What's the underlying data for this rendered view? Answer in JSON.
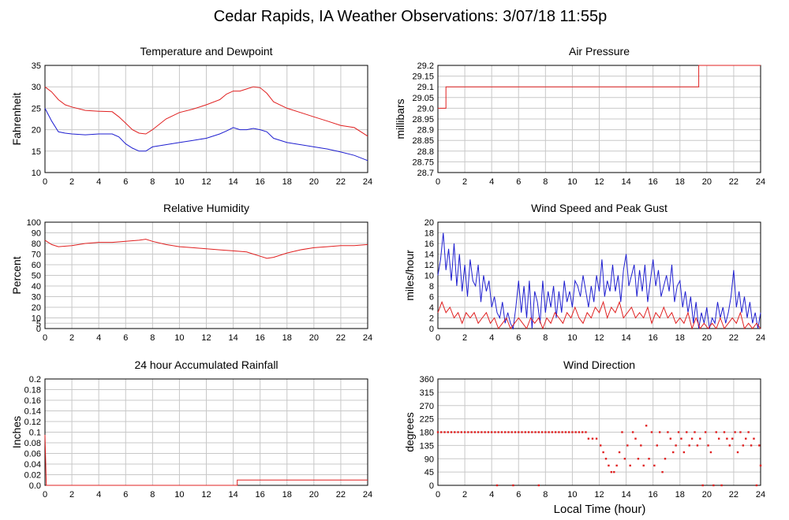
{
  "page": {
    "title": "Cedar Rapids, IA Weather Observations: 3/07/18 11:55p",
    "xlabel": "Local Time (hour)"
  },
  "colors": {
    "red": "#e02020",
    "blue": "#1f1fd0",
    "grid": "#c8c8c8",
    "axis": "#000000"
  },
  "chart_data": [
    {
      "id": "temp",
      "type": "line",
      "title": "Temperature and Dewpoint",
      "ylabel": "Fahrenheit",
      "xlim": [
        0,
        24
      ],
      "ylim": [
        10,
        35
      ],
      "yticks": [
        10,
        15,
        20,
        25,
        30,
        35
      ],
      "xticks": [
        0,
        2,
        4,
        6,
        8,
        10,
        12,
        14,
        16,
        18,
        20,
        22,
        24
      ],
      "series": [
        {
          "color": "#e02020",
          "x": [
            0,
            0.5,
            1,
            1.5,
            2,
            3,
            4,
            5,
            5.5,
            6,
            6.5,
            7,
            7.5,
            8,
            9,
            10,
            11,
            12,
            13,
            13.5,
            14,
            14.5,
            15,
            15.5,
            16,
            16.5,
            17,
            18,
            19,
            20,
            21,
            22,
            23,
            24
          ],
          "y": [
            30,
            28.8,
            27,
            25.8,
            25.3,
            24.5,
            24.3,
            24.2,
            23,
            21.5,
            20,
            19.2,
            19,
            20,
            22.5,
            24,
            24.8,
            25.8,
            27,
            28.3,
            29,
            29,
            29.5,
            30,
            29.8,
            28.5,
            26.5,
            25,
            24,
            23,
            22,
            21,
            20.5,
            18.5
          ]
        },
        {
          "color": "#1f1fd0",
          "x": [
            0,
            0.5,
            1,
            1.5,
            2,
            3,
            4,
            5,
            5.5,
            6,
            6.5,
            7,
            7.5,
            8,
            9,
            10,
            11,
            12,
            13,
            13.5,
            14,
            14.5,
            15,
            15.5,
            16,
            16.5,
            17,
            18,
            19,
            20,
            21,
            22,
            23,
            24
          ],
          "y": [
            25,
            22,
            19.5,
            19.2,
            19,
            18.8,
            19,
            19,
            18.3,
            16.7,
            15.7,
            15,
            15,
            16,
            16.5,
            17,
            17.5,
            18,
            19,
            19.7,
            20.5,
            20,
            20,
            20.3,
            20,
            19.5,
            18,
            17,
            16.5,
            16,
            15.5,
            14.8,
            14,
            12.8
          ]
        }
      ]
    },
    {
      "id": "pressure",
      "type": "line",
      "title": "Air Pressure",
      "ylabel": "millibars",
      "xlim": [
        0,
        24
      ],
      "ylim": [
        28.7,
        29.2
      ],
      "yticks": [
        28.7,
        28.75,
        28.8,
        28.85,
        28.9,
        28.95,
        29.0,
        29.05,
        29.1,
        29.15,
        29.2
      ],
      "ytick_labels": [
        "28.7",
        "28.75",
        "28.8",
        "28.85",
        "28.9",
        "28.95",
        "29.0",
        "29.05",
        "29.1",
        "29.15",
        "29.2"
      ],
      "xticks": [
        0,
        2,
        4,
        6,
        8,
        10,
        12,
        14,
        16,
        18,
        20,
        22,
        24
      ],
      "series": [
        {
          "color": "#e02020",
          "x": [
            0,
            0.6,
            0.6,
            19.4,
            19.4,
            24
          ],
          "y": [
            29.0,
            29.0,
            29.1,
            29.1,
            29.2,
            29.2
          ]
        }
      ]
    },
    {
      "id": "humidity",
      "type": "line",
      "title": "Relative Humidity",
      "ylabel": "Percent",
      "xlim": [
        0,
        24
      ],
      "ylim": [
        0,
        100
      ],
      "yticks": [
        0,
        5,
        10,
        20,
        30,
        40,
        50,
        60,
        70,
        80,
        90,
        100
      ],
      "xticks": [
        0,
        2,
        4,
        6,
        8,
        10,
        12,
        14,
        16,
        18,
        20,
        22,
        24
      ],
      "series": [
        {
          "color": "#e02020",
          "x": [
            0,
            0.5,
            1,
            2,
            3,
            4,
            5,
            6,
            7,
            7.5,
            8,
            9,
            10,
            11,
            12,
            13,
            14,
            15,
            15.5,
            16,
            16.5,
            17,
            18,
            19,
            20,
            21,
            22,
            23,
            24
          ],
          "y": [
            83,
            79,
            77,
            78,
            80,
            81,
            81,
            82,
            83,
            84,
            82,
            79,
            77,
            76,
            75,
            74,
            73,
            72,
            70,
            68,
            66,
            67,
            71,
            74,
            76,
            77,
            78,
            78,
            79
          ]
        }
      ]
    },
    {
      "id": "wind",
      "type": "line",
      "title": "Wind Speed and Peak Gust",
      "ylabel": "miles/hour",
      "xlim": [
        0,
        24
      ],
      "ylim": [
        0,
        20
      ],
      "yticks": [
        0,
        2,
        4,
        6,
        8,
        10,
        12,
        14,
        16,
        18,
        20
      ],
      "xticks": [
        0,
        2,
        4,
        6,
        8,
        10,
        12,
        14,
        16,
        18,
        20,
        22,
        24
      ],
      "series": [
        {
          "color": "#1f1fd0",
          "x": [
            0,
            0.2,
            0.4,
            0.6,
            0.8,
            1,
            1.2,
            1.4,
            1.6,
            1.8,
            2,
            2.2,
            2.4,
            2.6,
            2.8,
            3,
            3.2,
            3.4,
            3.6,
            3.8,
            4,
            4.2,
            4.4,
            4.6,
            4.8,
            5,
            5.2,
            5.4,
            5.6,
            5.8,
            6,
            6.2,
            6.4,
            6.6,
            6.8,
            7,
            7.2,
            7.4,
            7.6,
            7.8,
            8,
            8.2,
            8.4,
            8.6,
            8.8,
            9,
            9.2,
            9.4,
            9.6,
            9.8,
            10,
            10.2,
            10.4,
            10.6,
            10.8,
            11,
            11.2,
            11.4,
            11.6,
            11.8,
            12,
            12.2,
            12.4,
            12.6,
            12.8,
            13,
            13.2,
            13.4,
            13.6,
            13.8,
            14,
            14.2,
            14.4,
            14.6,
            14.8,
            15,
            15.2,
            15.4,
            15.6,
            15.8,
            16,
            16.2,
            16.4,
            16.6,
            16.8,
            17,
            17.2,
            17.4,
            17.6,
            17.8,
            18,
            18.2,
            18.4,
            18.6,
            18.8,
            19,
            19.2,
            19.4,
            19.6,
            19.8,
            20,
            20.2,
            20.4,
            20.6,
            20.8,
            21,
            21.2,
            21.4,
            21.6,
            21.8,
            22,
            22.2,
            22.4,
            22.6,
            22.8,
            23,
            23.2,
            23.4,
            23.6,
            23.8,
            24
          ],
          "y": [
            10,
            13,
            18,
            11,
            15,
            9,
            16,
            8,
            14,
            7,
            12,
            6,
            13,
            9,
            8,
            12,
            5,
            10,
            7,
            9,
            4,
            6,
            3,
            2,
            5,
            1,
            3,
            1,
            0,
            4,
            9,
            3,
            8,
            2,
            9,
            0,
            7,
            5,
            1,
            9,
            3,
            7,
            4,
            8,
            2,
            7,
            3,
            9,
            5,
            7,
            4,
            9,
            8,
            6,
            10,
            7,
            4,
            8,
            5,
            10,
            7,
            13,
            6,
            9,
            7,
            12,
            7,
            10,
            5,
            11,
            14,
            8,
            10,
            12,
            6,
            11,
            7,
            12,
            5,
            9,
            13,
            8,
            11,
            6,
            8,
            10,
            7,
            12,
            5,
            8,
            9,
            4,
            7,
            3,
            6,
            1,
            5,
            0,
            3,
            1,
            4,
            0,
            2,
            1,
            5,
            2,
            4,
            1,
            3,
            6,
            11,
            4,
            7,
            3,
            6,
            2,
            5,
            1,
            3,
            0,
            3
          ]
        },
        {
          "color": "#e02020",
          "x": [
            0,
            0.3,
            0.6,
            0.9,
            1.2,
            1.5,
            1.8,
            2.1,
            2.4,
            2.7,
            3,
            3.3,
            3.6,
            3.9,
            4.2,
            4.5,
            4.8,
            5.1,
            5.4,
            5.7,
            6,
            6.3,
            6.6,
            6.9,
            7.2,
            7.5,
            7.8,
            8.1,
            8.4,
            8.7,
            9,
            9.3,
            9.6,
            9.9,
            10.2,
            10.5,
            10.8,
            11.1,
            11.4,
            11.7,
            12,
            12.3,
            12.6,
            12.9,
            13.2,
            13.5,
            13.8,
            14.1,
            14.4,
            14.7,
            15,
            15.3,
            15.6,
            15.9,
            16.2,
            16.5,
            16.8,
            17.1,
            17.4,
            17.7,
            18,
            18.3,
            18.6,
            18.9,
            19.2,
            19.5,
            19.8,
            20.1,
            20.4,
            20.7,
            21,
            21.3,
            21.6,
            21.9,
            22.2,
            22.5,
            22.8,
            23.1,
            23.4,
            23.7,
            24
          ],
          "y": [
            3,
            5,
            3,
            4,
            2,
            3,
            1,
            3,
            2,
            3,
            1,
            2,
            3,
            1,
            2,
            0,
            1,
            2,
            0,
            1,
            2,
            1,
            0,
            2,
            1,
            2,
            0,
            2,
            1,
            3,
            2,
            1,
            3,
            2,
            4,
            2,
            1,
            3,
            2,
            4,
            3,
            5,
            2,
            4,
            3,
            5,
            2,
            3,
            4,
            2,
            3,
            2,
            4,
            1,
            3,
            2,
            4,
            2,
            3,
            1,
            2,
            1,
            3,
            0,
            2,
            0,
            1,
            0,
            1,
            0,
            2,
            0,
            1,
            2,
            1,
            3,
            0,
            1,
            0,
            1,
            0
          ]
        }
      ]
    },
    {
      "id": "rain",
      "type": "line",
      "title": "24 hour Accumulated Rainfall",
      "ylabel": "Inches",
      "xlim": [
        0,
        24
      ],
      "ylim": [
        0,
        0.2
      ],
      "yticks": [
        0,
        0.02,
        0.04,
        0.06,
        0.08,
        0.1,
        0.12,
        0.14,
        0.16,
        0.18,
        0.2
      ],
      "ytick_labels": [
        "0.0",
        "0.02",
        "0.04",
        "0.06",
        "0.08",
        "0.1",
        "0.12",
        "0.14",
        "0.16",
        "0.18",
        "0.2"
      ],
      "xticks": [
        0,
        2,
        4,
        6,
        8,
        10,
        12,
        14,
        16,
        18,
        20,
        22,
        24
      ],
      "series": [
        {
          "color": "#e02020",
          "x": [
            0,
            0.1,
            0.1,
            14.3,
            14.3,
            24
          ],
          "y": [
            0.095,
            0.0,
            0.0,
            0.0,
            0.01,
            0.01
          ]
        }
      ]
    },
    {
      "id": "direction",
      "type": "scatter",
      "title": "Wind Direction",
      "ylabel": "degrees",
      "xlim": [
        0,
        24
      ],
      "ylim": [
        0,
        360
      ],
      "yticks": [
        0,
        45,
        90,
        135,
        180,
        225,
        270,
        315,
        360
      ],
      "xticks": [
        0,
        2,
        4,
        6,
        8,
        10,
        12,
        14,
        16,
        18,
        20,
        22,
        24
      ],
      "series": [
        {
          "color": "#e02020",
          "x": [
            0,
            0.25,
            0.5,
            0.75,
            1,
            1.25,
            1.5,
            1.75,
            2,
            2.25,
            2.5,
            2.75,
            3,
            3.25,
            3.5,
            3.75,
            4,
            4.25,
            4.5,
            4.75,
            5,
            5.25,
            5.5,
            5.75,
            6,
            6.25,
            6.5,
            6.75,
            7,
            7.25,
            7.5,
            7.75,
            8,
            8.25,
            8.5,
            8.75,
            9,
            9.25,
            9.5,
            9.75,
            10,
            10.25,
            10.5,
            10.75,
            11,
            4.4,
            5.6,
            7.5,
            11.2,
            11.5,
            11.8,
            12.1,
            12.3,
            12.5,
            12.7,
            12.9,
            13.1,
            13.3,
            13.5,
            13.7,
            13.9,
            14.1,
            14.3,
            14.5,
            14.7,
            14.9,
            15.1,
            15.3,
            15.5,
            15.7,
            15.9,
            16.1,
            16.3,
            16.5,
            16.7,
            16.9,
            17.1,
            17.3,
            17.5,
            17.7,
            17.9,
            18.1,
            18.3,
            18.5,
            18.7,
            18.9,
            19.1,
            19.3,
            19.5,
            19.7,
            19.9,
            20.1,
            20.3,
            20.5,
            20.7,
            20.9,
            21.1,
            21.3,
            21.5,
            21.7,
            21.9,
            22.1,
            22.3,
            22.5,
            22.7,
            22.9,
            23.1,
            23.3,
            23.5,
            23.7,
            23.9,
            24
          ],
          "y": [
            180,
            180,
            180,
            180,
            180,
            180,
            180,
            180,
            180,
            180,
            180,
            180,
            180,
            180,
            180,
            180,
            180,
            180,
            180,
            180,
            180,
            180,
            180,
            180,
            180,
            180,
            180,
            180,
            180,
            180,
            180,
            180,
            180,
            180,
            180,
            180,
            180,
            180,
            180,
            180,
            180,
            180,
            180,
            180,
            180,
            0,
            0,
            0,
            158,
            158,
            158,
            135,
            112,
            90,
            67,
            45,
            45,
            67,
            112,
            180,
            90,
            135,
            67,
            180,
            158,
            90,
            135,
            67,
            202,
            90,
            180,
            67,
            135,
            180,
            45,
            90,
            180,
            158,
            112,
            135,
            180,
            158,
            112,
            180,
            135,
            158,
            180,
            135,
            158,
            0,
            180,
            135,
            112,
            0,
            180,
            158,
            0,
            180,
            158,
            135,
            158,
            180,
            112,
            180,
            135,
            158,
            180,
            135,
            158,
            0,
            135,
            67
          ]
        }
      ]
    }
  ]
}
